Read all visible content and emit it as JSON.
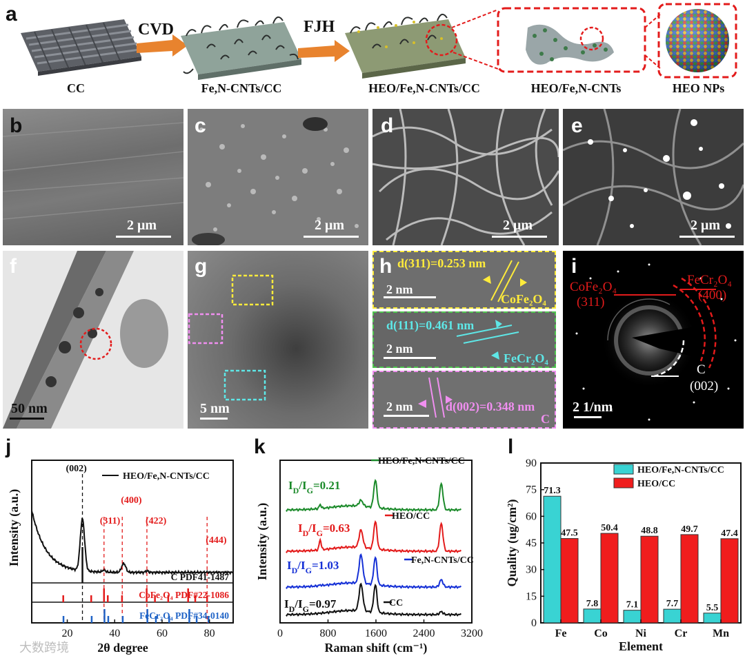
{
  "panel_a": {
    "label": "a",
    "steps": [
      "CC",
      "Fe,N-CNTs/CC",
      "HEO/Fe,N-CNTs/CC",
      "HEO/Fe,N-CNTs",
      "HEO NPs"
    ],
    "arrows": [
      "CVD",
      "FJH"
    ]
  },
  "sem": {
    "panels": [
      {
        "label": "b",
        "scale": "2 μm"
      },
      {
        "label": "c",
        "scale": "2 μm"
      },
      {
        "label": "d",
        "scale": "2 μm"
      },
      {
        "label": "e",
        "scale": "2 μm"
      }
    ]
  },
  "tem": {
    "f": {
      "label": "f",
      "scale": "50 nm"
    },
    "g": {
      "label": "g",
      "scale": "5 nm"
    },
    "h": {
      "label": "h",
      "rows": [
        {
          "spacing": "d(311)=0.253 nm",
          "scale": "2 nm",
          "phase": "CoFe₂O₄",
          "color": "#ffeb3b"
        },
        {
          "spacing": "d(111)=0.461 nm",
          "scale": "2 nm",
          "phase": "FeCr₂O₄",
          "color": "#5ee7e7"
        },
        {
          "spacing": "d(002)=0.348 nm",
          "scale": "2 nm",
          "phase": "C",
          "color": "#f08ff0"
        }
      ]
    },
    "i": {
      "label": "i",
      "scale": "2 1/nm",
      "rings": [
        {
          "phase": "CoFe₂O₄",
          "plane": "(311)",
          "color": "#e31b1b"
        },
        {
          "phase": "FeCr₂O₄",
          "plane": "(400)",
          "color": "#e31b1b"
        },
        {
          "phase": "C",
          "plane": "(002)",
          "color": "#ffffff"
        }
      ]
    }
  },
  "chart_data": [
    {
      "type": "line",
      "panel": "j",
      "xlabel": "2θ degree",
      "ylabel": "Intensity (a.u.)",
      "xlim": [
        5,
        90
      ],
      "xticks": [
        20,
        40,
        60,
        80
      ],
      "legend": "HEO/Fe,N-CNTs/CC",
      "peak_labels": [
        {
          "text": "(002)",
          "x": 26.4,
          "color": "#111111"
        },
        {
          "text": "(311)",
          "x": 35.5,
          "color": "#e31b1b"
        },
        {
          "text": "(400)",
          "x": 43.2,
          "color": "#e31b1b"
        },
        {
          "text": "(422)",
          "x": 53.6,
          "color": "#e31b1b"
        },
        {
          "text": "(444)",
          "x": 79.0,
          "color": "#e31b1b"
        }
      ],
      "references": [
        {
          "name": "C PDF41-1487",
          "color": "#111111",
          "lines": [
            26.4
          ]
        },
        {
          "name": "CoFe₂O₄ PDF#22-1086",
          "color": "#e31b1b",
          "lines": [
            18.3,
            30.1,
            35.5,
            37.1,
            43.1,
            53.5,
            57.0,
            62.6,
            71.0,
            74.0,
            79.0
          ]
        },
        {
          "name": "FeCr₂O₄ PDF#34-0140",
          "color": "#1f63c6",
          "lines": [
            18.4,
            30.3,
            35.7,
            37.3,
            43.4,
            53.8,
            57.4,
            63.0,
            71.5,
            74.6,
            79.6
          ]
        }
      ]
    },
    {
      "type": "line",
      "panel": "k",
      "xlabel": "Raman shift (cm⁻¹)",
      "ylabel": "Intensity (a.u.)",
      "xlim": [
        0,
        3200
      ],
      "xticks": [
        0,
        800,
        1600,
        2400,
        3200
      ],
      "series": [
        {
          "name": "HEO/Fe,N-CNTs/CC",
          "ratio": "I_D/I_G=0.21",
          "color": "#1b8a2a"
        },
        {
          "name": "HEO/CC",
          "ratio": "I_D/I_G=0.63",
          "color": "#e31b1b"
        },
        {
          "name": "Fe,N-CNTs/CC",
          "ratio": "I_D/I_G=1.03",
          "color": "#1530d6"
        },
        {
          "name": "CC",
          "ratio": "I_D/I_G=0.97",
          "color": "#111111"
        }
      ]
    },
    {
      "type": "bar",
      "panel": "l",
      "xlabel": "Element",
      "ylabel": "Quality (ug/cm²)",
      "ylim": [
        0,
        90
      ],
      "yticks": [
        0,
        15,
        30,
        45,
        60,
        75,
        90
      ],
      "categories": [
        "Fe",
        "Co",
        "Ni",
        "Cr",
        "Mn"
      ],
      "series": [
        {
          "name": "HEO/Fe,N-CNTs/CC",
          "color": "#39d3d3",
          "values": [
            71.3,
            7.8,
            7.1,
            7.7,
            5.5
          ]
        },
        {
          "name": "HEO/CC",
          "color": "#f01d1d",
          "values": [
            47.5,
            50.4,
            48.8,
            49.7,
            47.4
          ]
        }
      ]
    }
  ],
  "watermark": "大数跨境"
}
